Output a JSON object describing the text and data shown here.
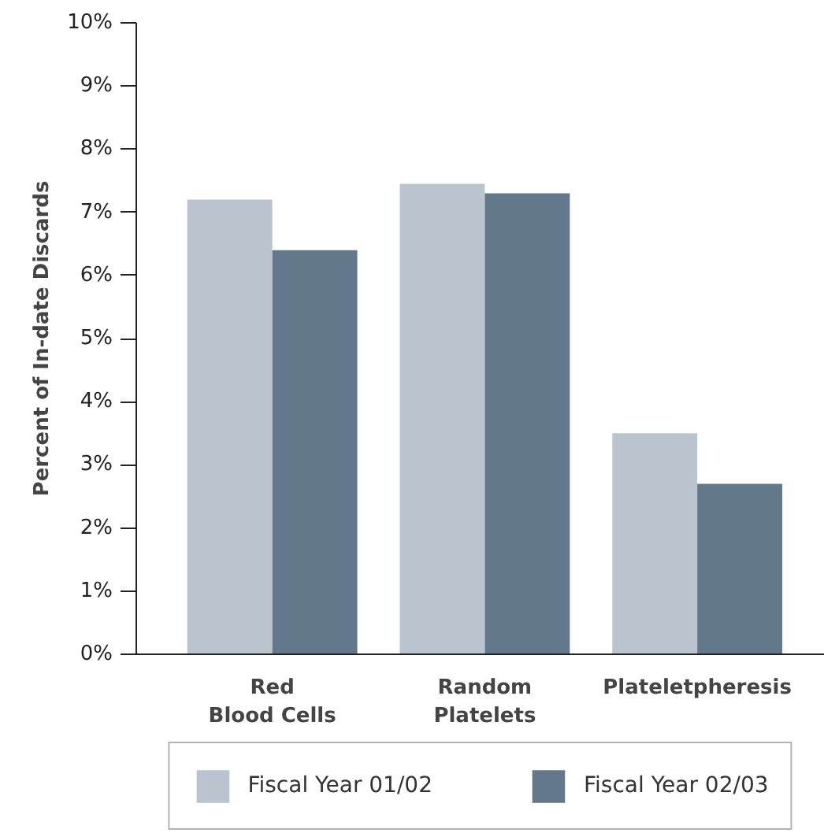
{
  "chart_data": {
    "type": "bar",
    "ylabel": "Percent of In-date Discards",
    "categories": [
      "Red\nBlood Cells",
      "Random\nPlatelets",
      "Plateletpheresis"
    ],
    "series": [
      {
        "name": "Fiscal Year 01/02",
        "color": "#b9c4ce",
        "values": [
          7.2,
          7.45,
          3.5
        ]
      },
      {
        "name": "Fiscal Year 02/03",
        "color": "#64788c",
        "values": [
          6.4,
          7.3,
          2.7
        ]
      }
    ],
    "ylim": [
      0,
      10
    ],
    "yticks": [
      {
        "value": 0,
        "label": "0%"
      },
      {
        "value": 1,
        "label": "1%"
      },
      {
        "value": 2,
        "label": "2%"
      },
      {
        "value": 3,
        "label": "3%"
      },
      {
        "value": 4,
        "label": "4%"
      },
      {
        "value": 5,
        "label": "5%"
      },
      {
        "value": 6,
        "label": "6%"
      },
      {
        "value": 7,
        "label": "7%"
      },
      {
        "value": 8,
        "label": "8%"
      },
      {
        "value": 9,
        "label": "9%"
      },
      {
        "value": 10,
        "label": "10%"
      }
    ],
    "grid": false,
    "legend": "bottom"
  }
}
